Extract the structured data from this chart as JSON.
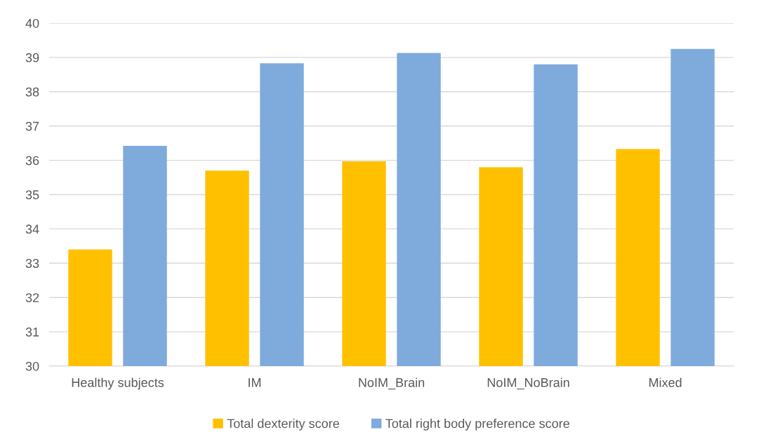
{
  "chart_data": {
    "type": "bar",
    "categories": [
      "Healthy subjects",
      "IM",
      "NoIM_Brain",
      "NoIM_NoBrain",
      "Mixed"
    ],
    "series": [
      {
        "name": "Total dexterity score",
        "color": "#ffc000",
        "values": [
          33.4,
          35.7,
          35.97,
          35.8,
          36.33
        ]
      },
      {
        "name": "Total right body preference score",
        "color": "#7faadc",
        "values": [
          36.42,
          38.83,
          39.13,
          38.8,
          39.25
        ]
      }
    ],
    "ylim": [
      30,
      40
    ],
    "yticks": [
      30,
      31,
      32,
      33,
      34,
      35,
      36,
      37,
      38,
      39,
      40
    ],
    "grid": "y",
    "legend": "bottom"
  }
}
